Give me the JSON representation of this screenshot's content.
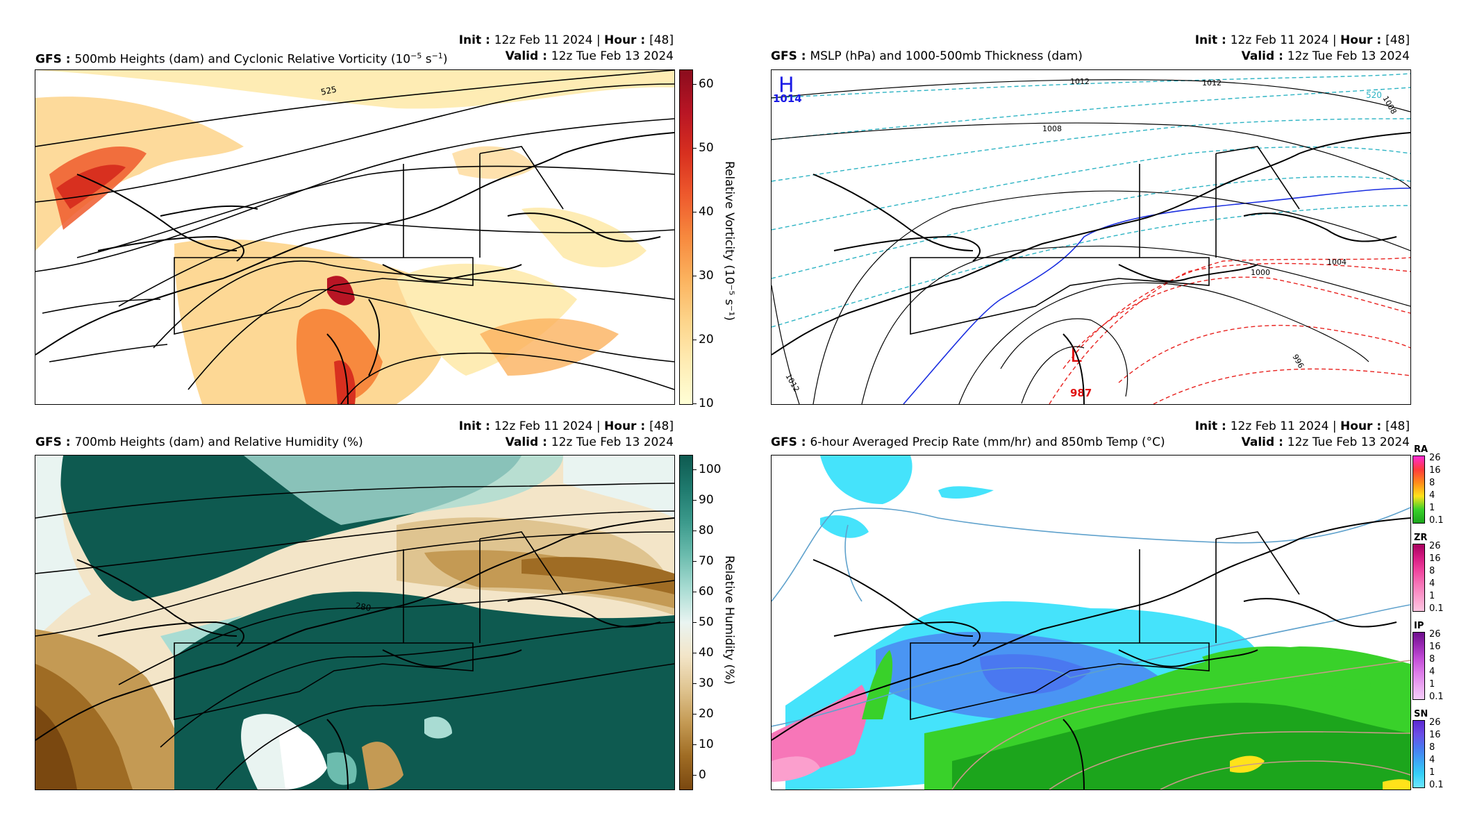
{
  "panels": [
    {
      "id": "vorticity",
      "model": "GFS",
      "title_rest": "500mb Heights (dam) and Cyclonic Relative Vorticity (10",
      "title_sup": "−5",
      "title_unit": " s",
      "title_sup2": "−1",
      "title_end": ")",
      "init_label": "Init",
      "init_value": "12z Feb 11 2024",
      "hour_label": "Hour",
      "hour_value": "[48]",
      "valid_label": "Valid",
      "valid_value": "12z Tue Feb 13 2024",
      "colorbar": {
        "ticks": [
          "60",
          "50",
          "40",
          "30",
          "20",
          "10"
        ],
        "label": "Relative Vorticity (10⁻⁵ s⁻¹)",
        "colors": [
          "#8b0c1d",
          "#b81524",
          "#d8301f",
          "#ee5a2d",
          "#f7893e",
          "#fbb25e",
          "#fdd48a",
          "#feecb4",
          "#ffffd6"
        ]
      },
      "contour_labels": [
        "525"
      ]
    },
    {
      "id": "mslp",
      "model": "GFS",
      "title_rest": "MSLP (hPa) and 1000-500mb Thickness (dam)",
      "init_label": "Init",
      "init_value": "12z Feb 11 2024",
      "hour_label": "Hour",
      "hour_value": "[48]",
      "valid_label": "Valid",
      "valid_value": "12z Tue Feb 13 2024",
      "high": {
        "symbol": "H",
        "value": "1014"
      },
      "low": {
        "symbol": "L",
        "value": "987"
      },
      "isobar_labels": [
        "1012",
        "1012",
        "1008",
        "1004",
        "1000",
        "996",
        "1012",
        "1008"
      ],
      "thickness_labels": [
        "520"
      ]
    },
    {
      "id": "humidity",
      "model": "GFS",
      "title_rest": "700mb Heights (dam) and Relative Humidity (%)",
      "init_label": "Init",
      "init_value": "12z Feb 11 2024",
      "hour_label": "Hour",
      "hour_value": "[48]",
      "valid_label": "Valid",
      "valid_value": "12z Tue Feb 13 2024",
      "colorbar": {
        "ticks": [
          "100",
          "90",
          "80",
          "70",
          "60",
          "50",
          "40",
          "30",
          "20",
          "10",
          "0"
        ],
        "label": "Relative Humidity (%)",
        "colors": [
          "#0e5a50",
          "#1f7a6e",
          "#3c9a8c",
          "#6cbcae",
          "#a9dcd3",
          "#e9f4f1",
          "#f3e5c8",
          "#dfc490",
          "#c49a54",
          "#9f6c24",
          "#7a4810"
        ]
      },
      "contour_labels": [
        "280"
      ]
    },
    {
      "id": "precip",
      "model": "GFS",
      "title_rest": "6-hour Averaged Precip Rate (mm/hr) and 850mb Temp (°C)",
      "init_label": "Init",
      "init_value": "12z Feb 11 2024",
      "hour_label": "Hour",
      "hour_value": "[48]",
      "valid_label": "Valid",
      "valid_value": "12z Tue Feb 13 2024",
      "mini_colorbars": [
        {
          "name": "RA",
          "ticks": [
            "26",
            "16",
            "8",
            "4",
            "1",
            "0.1"
          ],
          "colors": [
            "#ff2ad4",
            "#ff3b3b",
            "#ff8c1a",
            "#ffe21a",
            "#39d12a",
            "#1ca51c"
          ]
        },
        {
          "name": "ZR",
          "ticks": [
            "26",
            "16",
            "8",
            "4",
            "1",
            "0.1"
          ],
          "colors": [
            "#a8005f",
            "#d61c83",
            "#f0469f",
            "#f776b8",
            "#fb9fcd",
            "#fdc6e1"
          ]
        },
        {
          "name": "IP",
          "ticks": [
            "26",
            "16",
            "8",
            "4",
            "1",
            "0.1"
          ],
          "colors": [
            "#6e0f8c",
            "#9b2bb5",
            "#c44fd8",
            "#dc7ce8",
            "#eaa6f1",
            "#f4cdf8"
          ]
        },
        {
          "name": "SN",
          "ticks": [
            "26",
            "16",
            "8",
            "4",
            "1",
            "0.1"
          ],
          "colors": [
            "#5b28d1",
            "#6b4de6",
            "#4a78f0",
            "#3da5f5",
            "#35d0f8",
            "#6ee7ff"
          ]
        }
      ]
    }
  ],
  "colors": {
    "thickness_cold": "#2cb3c3",
    "thickness_zero": "#1a2ee0",
    "thickness_warm": "#e8221f",
    "high_color": "#1a1ae6",
    "low_color": "#e01212",
    "temp_cold": "#5ea1cc",
    "temp_warm": "#c99a8a"
  }
}
